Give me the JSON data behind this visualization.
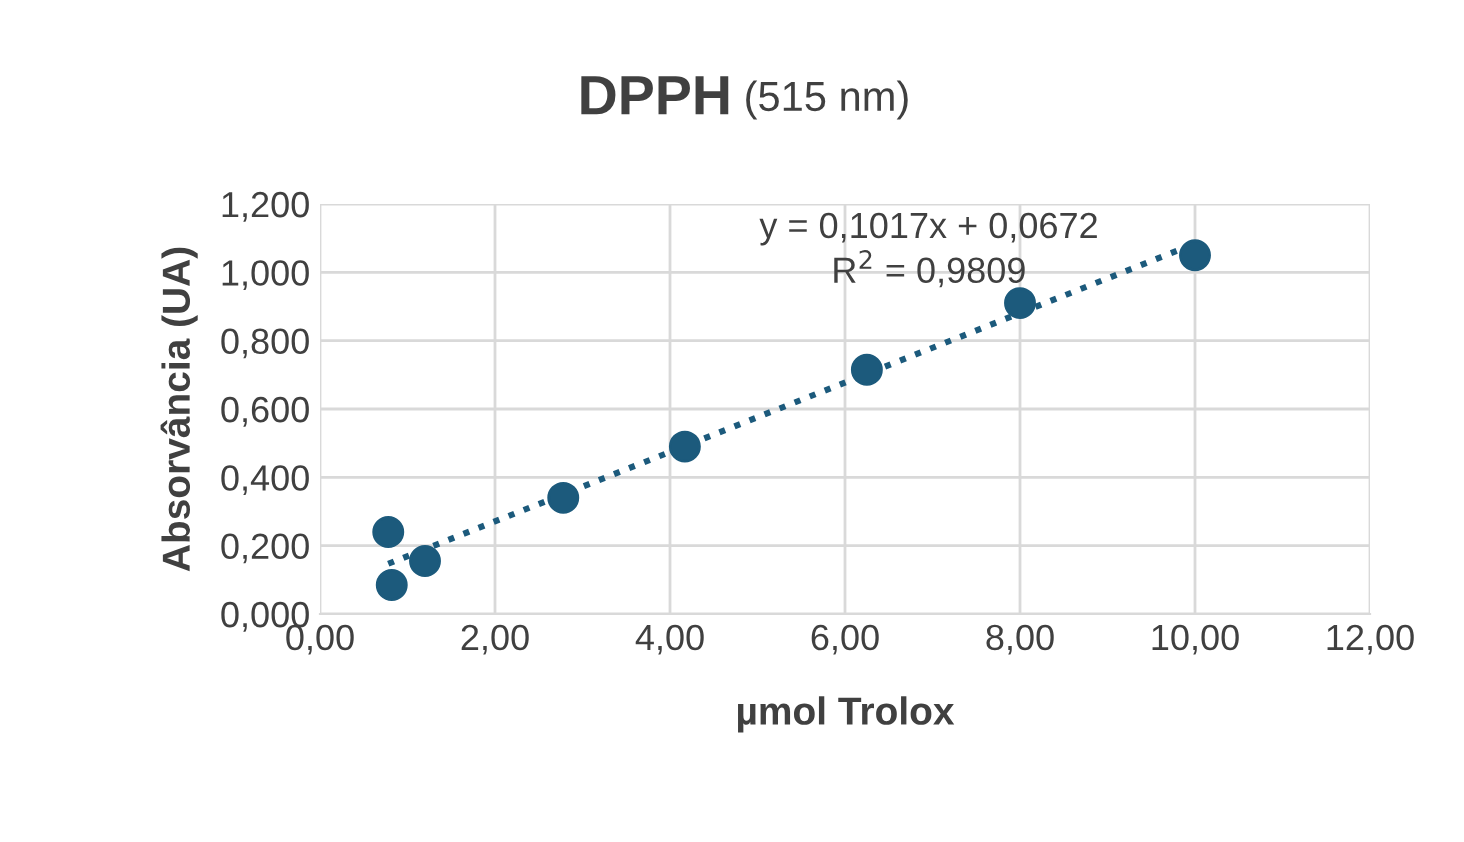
{
  "chart_data": {
    "type": "scatter",
    "title": "DPPH (515 nm)",
    "xlabel": "µmol Trolox",
    "ylabel": "Absorvância (UA)",
    "series": [
      {
        "color": "#1c5a7c",
        "x": [
          0.78,
          0.82,
          1.2,
          2.78,
          4.17,
          6.25,
          8.0,
          10.0
        ],
        "values": [
          0.24,
          0.085,
          0.155,
          0.34,
          0.49,
          0.715,
          0.91,
          1.05
        ],
        "marker": "circle"
      },
      {
        "type": "line",
        "color": "#1c5a7c",
        "x": [
          0.78,
          10.0
        ],
        "values": [
          0.147,
          1.084
        ],
        "line_style": "dotted"
      }
    ],
    "annotations": [
      "y = 0,1017x + 0,0672",
      "R$^{2}$ = 0,9809"
    ],
    "xlim": [
      0,
      12
    ],
    "ylim": [
      0,
      1.2
    ],
    "xticks": [
      {
        "value": 0,
        "label": "0,00"
      },
      {
        "value": 2,
        "label": "2,00"
      },
      {
        "value": 4,
        "label": "4,00"
      },
      {
        "value": 6,
        "label": "6,00"
      },
      {
        "value": 8,
        "label": "8,00"
      },
      {
        "value": 10,
        "label": "10,00"
      },
      {
        "value": 12,
        "label": "12,00"
      }
    ],
    "yticks": [
      {
        "value": 0,
        "label": "0,000"
      },
      {
        "value": 0.2,
        "label": "0,200"
      },
      {
        "value": 0.4,
        "label": "0,400"
      },
      {
        "value": 0.6,
        "label": "0,600"
      },
      {
        "value": 0.8,
        "label": "0,800"
      },
      {
        "value": 1.0,
        "label": "1,000"
      },
      {
        "value": 1.2,
        "label": "1,200"
      }
    ],
    "grid": true,
    "legend": false
  }
}
